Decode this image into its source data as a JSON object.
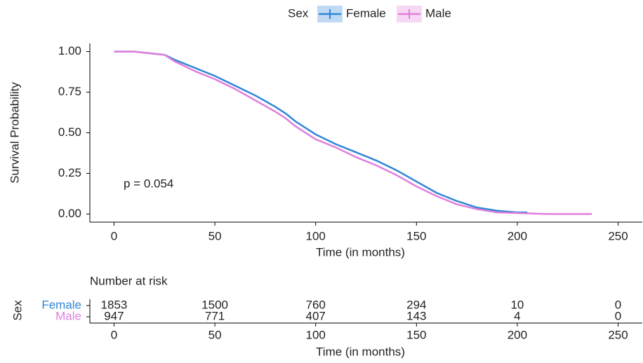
{
  "chart_data": [
    {
      "type": "line",
      "legend_title": "Sex",
      "legend": "top",
      "annotation": "p = 0.054",
      "xlabel": "Time (in months)",
      "ylabel": "Survival Probability",
      "xlim": [
        -12,
        262
      ],
      "ylim": [
        -0.05,
        1.05
      ],
      "xticks": [
        0,
        50,
        100,
        150,
        200,
        250
      ],
      "yticks": [
        {
          "value": 0,
          "label": "0.00"
        },
        {
          "value": 0.25,
          "label": "0.25"
        },
        {
          "value": 0.5,
          "label": "0.50"
        },
        {
          "value": 0.75,
          "label": "0.75"
        },
        {
          "value": 1,
          "label": "1.00"
        }
      ],
      "series": [
        {
          "name": "Female",
          "color": "#2f86d6",
          "x": [
            0,
            10,
            25,
            30,
            40,
            50,
            60,
            70,
            80,
            85,
            90,
            100,
            110,
            120,
            130,
            140,
            150,
            160,
            170,
            180,
            190,
            200,
            205
          ],
          "values": [
            1,
            1,
            0.98,
            0.95,
            0.9,
            0.85,
            0.79,
            0.73,
            0.66,
            0.62,
            0.57,
            0.49,
            0.43,
            0.38,
            0.33,
            0.27,
            0.2,
            0.13,
            0.08,
            0.04,
            0.02,
            0.01,
            0.01
          ]
        },
        {
          "name": "Male",
          "color": "#e07fdb",
          "x": [
            0,
            10,
            25,
            30,
            40,
            50,
            60,
            70,
            80,
            85,
            90,
            100,
            110,
            120,
            130,
            140,
            150,
            160,
            170,
            180,
            190,
            215,
            237
          ],
          "values": [
            1,
            1,
            0.98,
            0.94,
            0.88,
            0.83,
            0.77,
            0.7,
            0.63,
            0.59,
            0.54,
            0.46,
            0.41,
            0.35,
            0.3,
            0.24,
            0.17,
            0.11,
            0.06,
            0.03,
            0.01,
            0,
            0
          ]
        }
      ]
    },
    {
      "type": "table",
      "title": "Number at risk",
      "ylabel": "Sex",
      "xlabel": "Time (in months)",
      "xlim": [
        -12,
        262
      ],
      "xticks": [
        0,
        50,
        100,
        150,
        200,
        250
      ],
      "x": [
        0,
        50,
        100,
        150,
        200,
        250
      ],
      "series": [
        {
          "name": "Female",
          "color": "#2f86d6",
          "values": [
            1853,
            1500,
            760,
            294,
            10,
            0
          ]
        },
        {
          "name": "Male",
          "color": "#e07fdb",
          "values": [
            947,
            771,
            407,
            143,
            4,
            0
          ]
        }
      ]
    }
  ]
}
